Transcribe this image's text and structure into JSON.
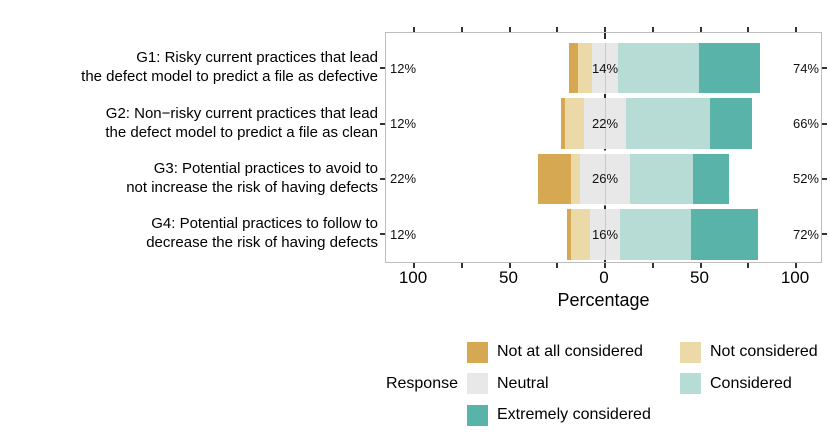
{
  "chart_data": {
    "type": "bar",
    "variant": "likert-diverging-stacked",
    "title": "",
    "xlabel": "Percentage",
    "x_axis": {
      "tick_values": [
        -100,
        -50,
        0,
        50,
        100
      ],
      "tick_labels": [
        "100",
        "50",
        "0",
        "50",
        "100"
      ],
      "minor_tick_step": 25,
      "xlim": [
        -114,
        114
      ],
      "zero_reference_line": "dashed"
    },
    "response_levels": [
      "Not at all considered",
      "Not considered",
      "Neutral",
      "Considered",
      "Extremely considered"
    ],
    "colors": {
      "not_at_all_considered": "#d7a852",
      "not_considered": "#ecd9a8",
      "neutral": "#e8e8e8",
      "considered": "#b7dcd5",
      "extremely_considered": "#59b3a8",
      "panel_border": "#bdbdbd",
      "zero_line": "#2b2b2b"
    },
    "rows": [
      {
        "group": "G1",
        "label_lines": [
          "G1: Risky current practices that lead",
          "the defect model to predict a file as defective"
        ],
        "summary": {
          "left": "12%",
          "neutral": "14%",
          "right": "74%"
        },
        "values": {
          "not_at_all_considered": 5,
          "not_considered": 7,
          "neutral": 14,
          "considered": 42,
          "extremely_considered": 32
        }
      },
      {
        "group": "G2",
        "label_lines": [
          "G2: Non−risky current practices that lead",
          "the defect model to predict a file as clean"
        ],
        "summary": {
          "left": "12%",
          "neutral": "22%",
          "right": "66%"
        },
        "values": {
          "not_at_all_considered": 2,
          "not_considered": 10,
          "neutral": 22,
          "considered": 44,
          "extremely_considered": 22
        }
      },
      {
        "group": "G3",
        "label_lines": [
          "G3: Potential practices to avoid to",
          "not increase the risk of having defects"
        ],
        "summary": {
          "left": "22%",
          "neutral": "26%",
          "right": "52%"
        },
        "values": {
          "not_at_all_considered": 17,
          "not_considered": 5,
          "neutral": 26,
          "considered": 33,
          "extremely_considered": 19
        }
      },
      {
        "group": "G4",
        "label_lines": [
          "G4: Potential practices to follow to",
          "decrease the risk of having defects"
        ],
        "summary": {
          "left": "12%",
          "neutral": "16%",
          "right": "72%"
        },
        "values": {
          "not_at_all_considered": 2,
          "not_considered": 10,
          "neutral": 16,
          "considered": 37,
          "extremely_considered": 35
        }
      }
    ],
    "legend": {
      "title": "Response",
      "position": "bottom-right",
      "items": [
        {
          "label": "Not at all considered",
          "color_key": "not_at_all_considered",
          "col": 0,
          "row": 0
        },
        {
          "label": "Not considered",
          "color_key": "not_considered",
          "col": 1,
          "row": 0
        },
        {
          "label": "Neutral",
          "color_key": "neutral",
          "col": 0,
          "row": 1
        },
        {
          "label": "Considered",
          "color_key": "considered",
          "col": 1,
          "row": 1
        },
        {
          "label": "Extremely considered",
          "color_key": "extremely_considered",
          "col": 0,
          "row": 2
        }
      ]
    }
  }
}
